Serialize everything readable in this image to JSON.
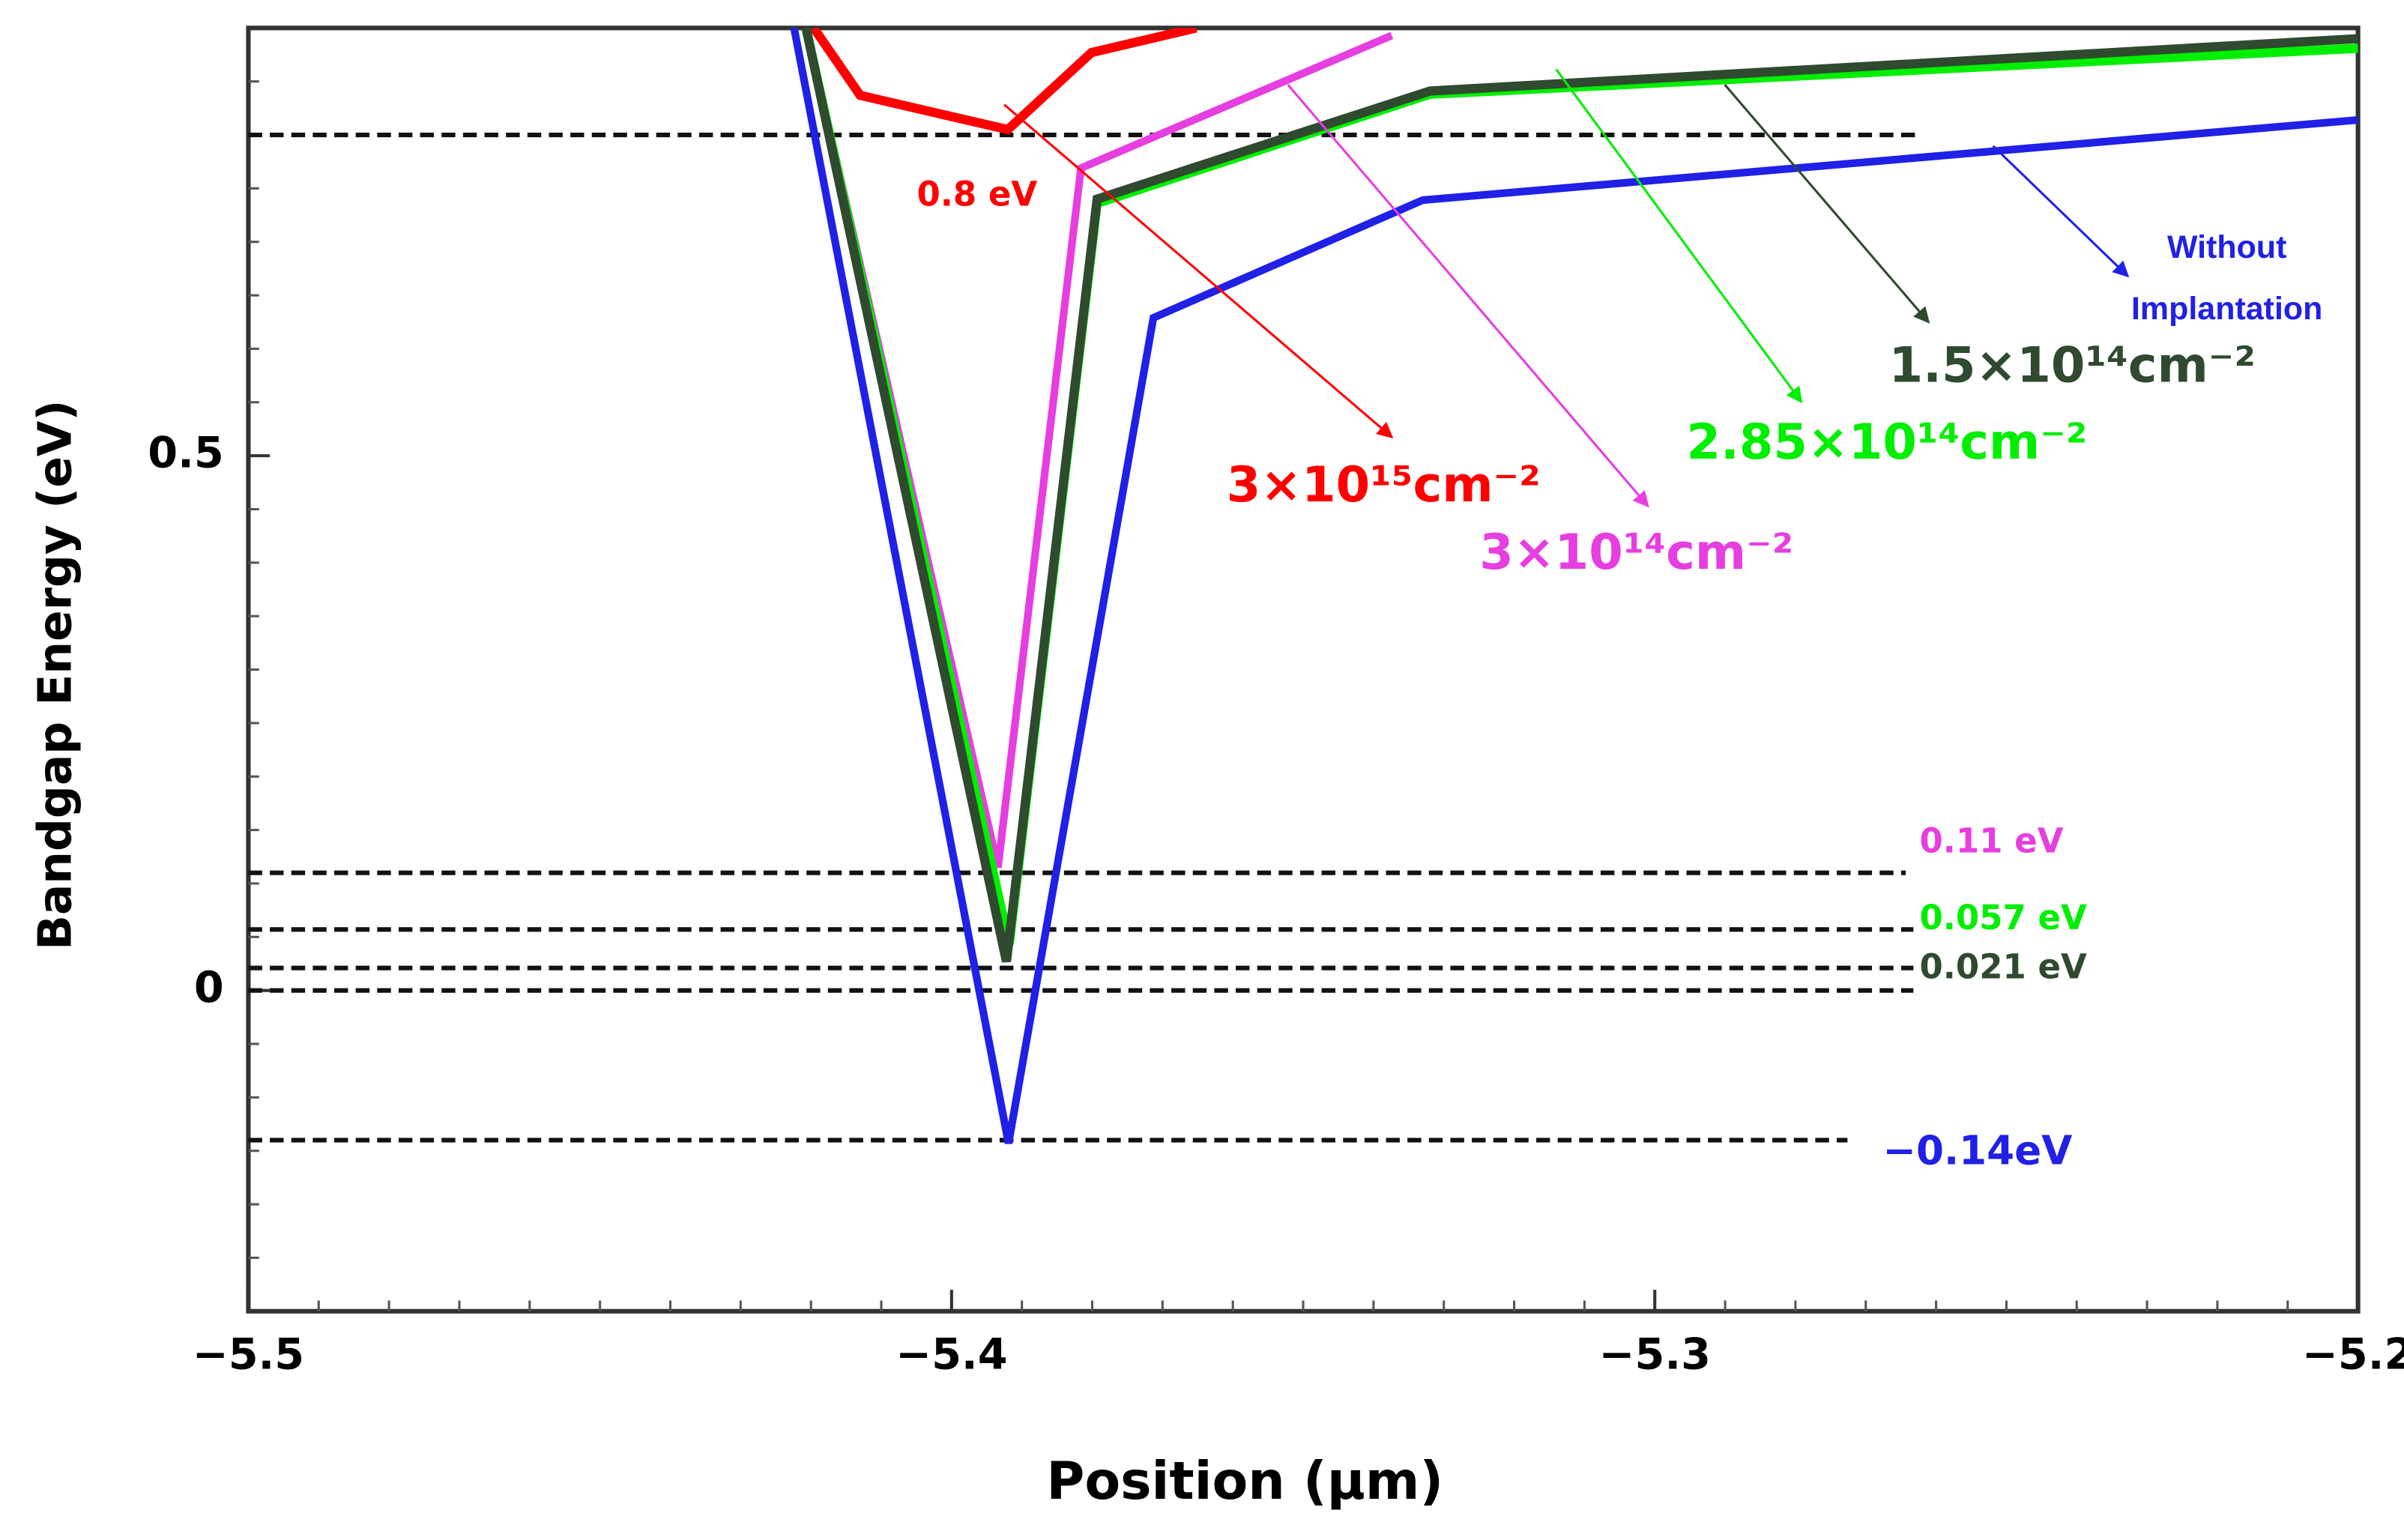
{
  "chart_data": {
    "type": "line",
    "xlabel": "Position (μm)",
    "ylabel": "Bandgap Energy (eV)",
    "xlim": [
      -5.5,
      -5.2
    ],
    "ylim": [
      -0.3,
      0.9
    ],
    "xticks": [
      {
        "value": -5.5,
        "label": "−5.5"
      },
      {
        "value": -5.4,
        "label": "−5.4"
      },
      {
        "value": -5.3,
        "label": "−5.3"
      },
      {
        "value": -5.2,
        "label": "−5.2"
      }
    ],
    "yticks": [
      0,
      0.5
    ],
    "xminorticks": [
      -5.49,
      -5.48,
      -5.47,
      -5.46,
      -5.45,
      -5.44,
      -5.43,
      -5.42,
      -5.41,
      -5.39,
      -5.38,
      -5.37,
      -5.36,
      -5.35,
      -5.34,
      -5.33,
      -5.32,
      -5.31,
      -5.29,
      -5.28,
      -5.27,
      -5.26,
      -5.25,
      -5.24,
      -5.23,
      -5.22,
      -5.21
    ],
    "yminorticks": [
      -0.25,
      -0.2,
      -0.15,
      -0.1,
      -0.05,
      0.05,
      0.1,
      0.15,
      0.2,
      0.25,
      0.3,
      0.35,
      0.4,
      0.45,
      0.55,
      0.6,
      0.65,
      0.7,
      0.75,
      0.8,
      0.85
    ],
    "series": [
      {
        "name": "3×10¹⁵cm⁻²",
        "color": "#ff0000",
        "x": [
          -5.4196,
          -5.413,
          -5.392,
          -5.3801,
          -5.3652
        ],
        "values": [
          0.9,
          0.837,
          0.805,
          0.877,
          0.9
        ]
      },
      {
        "name": "3×10¹⁴cm⁻²",
        "color": "#e63ee0",
        "x": [
          -5.4207,
          -5.3934,
          -5.3816,
          -5.3374
        ],
        "values": [
          0.9,
          0.115,
          0.769,
          0.893
        ]
      },
      {
        "name": "2.85×10¹⁴cm⁻²",
        "color": "#00ee00",
        "x": [
          -5.4207,
          -5.3918,
          -5.3793,
          -5.332,
          -5.2
        ],
        "values": [
          0.9,
          0.043,
          0.736,
          0.838,
          0.881
        ]
      },
      {
        "name": "1.5×10¹⁴cm⁻²",
        "color": "#2f4a2f",
        "x": [
          -5.4207,
          -5.3922,
          -5.3793,
          -5.332,
          -5.2
        ],
        "values": [
          0.9,
          0.027,
          0.74,
          0.841,
          0.89
        ]
      },
      {
        "name": "Without Implantation",
        "color": "#2020e6",
        "x": [
          -5.4224,
          -5.3919,
          -5.3713,
          -5.333,
          -5.2
        ],
        "values": [
          0.9,
          -0.143,
          0.629,
          0.739,
          0.814
        ]
      }
    ],
    "hlines": [
      {
        "value": 0.8,
        "label": "0.8 eV",
        "color": "#ff0000"
      },
      {
        "value": 0.11,
        "label": "0.11 eV",
        "color": "#e63ee0"
      },
      {
        "value": 0.057,
        "label": "0.057 eV",
        "color": "#00ee00"
      },
      {
        "value": 0.021,
        "label": "0.021 eV",
        "color": "#2f4a2f"
      },
      {
        "value": 0
      },
      {
        "value": -0.14,
        "label": "−0.14eV",
        "color": "#2020e6"
      }
    ]
  }
}
